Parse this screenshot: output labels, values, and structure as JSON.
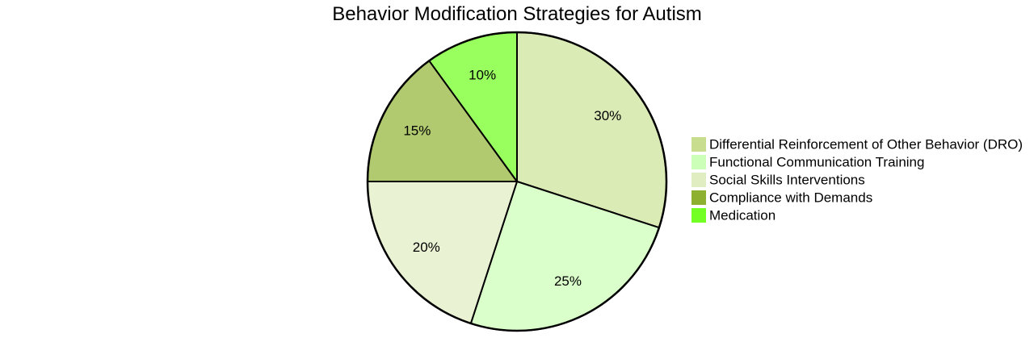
{
  "chart_data": {
    "type": "pie",
    "title": "Behavior Modification Strategies for Autism",
    "slices": [
      {
        "label": "Differential Reinforcement of Other Behavior (DRO)",
        "value": 30,
        "value_label": "30%",
        "fill": "#dbebb6",
        "legend_color": "#c8de8e"
      },
      {
        "label": "Functional Communication Training",
        "value": 25,
        "value_label": "25%",
        "fill": "#daffca",
        "legend_color": "#ccffb7"
      },
      {
        "label": "Social Skills Interventions",
        "value": 20,
        "value_label": "20%",
        "fill": "#e9f3d3",
        "legend_color": "#dfedc0"
      },
      {
        "label": "Compliance with Demands",
        "value": 15,
        "value_label": "15%",
        "fill": "#b1ca6f",
        "legend_color": "#8db031"
      },
      {
        "label": "Medication",
        "value": 10,
        "value_label": "10%",
        "fill": "#98ff5f",
        "legend_color": "#73ff23"
      }
    ],
    "start_angle": "12 o'clock",
    "direction": "clockwise",
    "legend_position": "right"
  }
}
